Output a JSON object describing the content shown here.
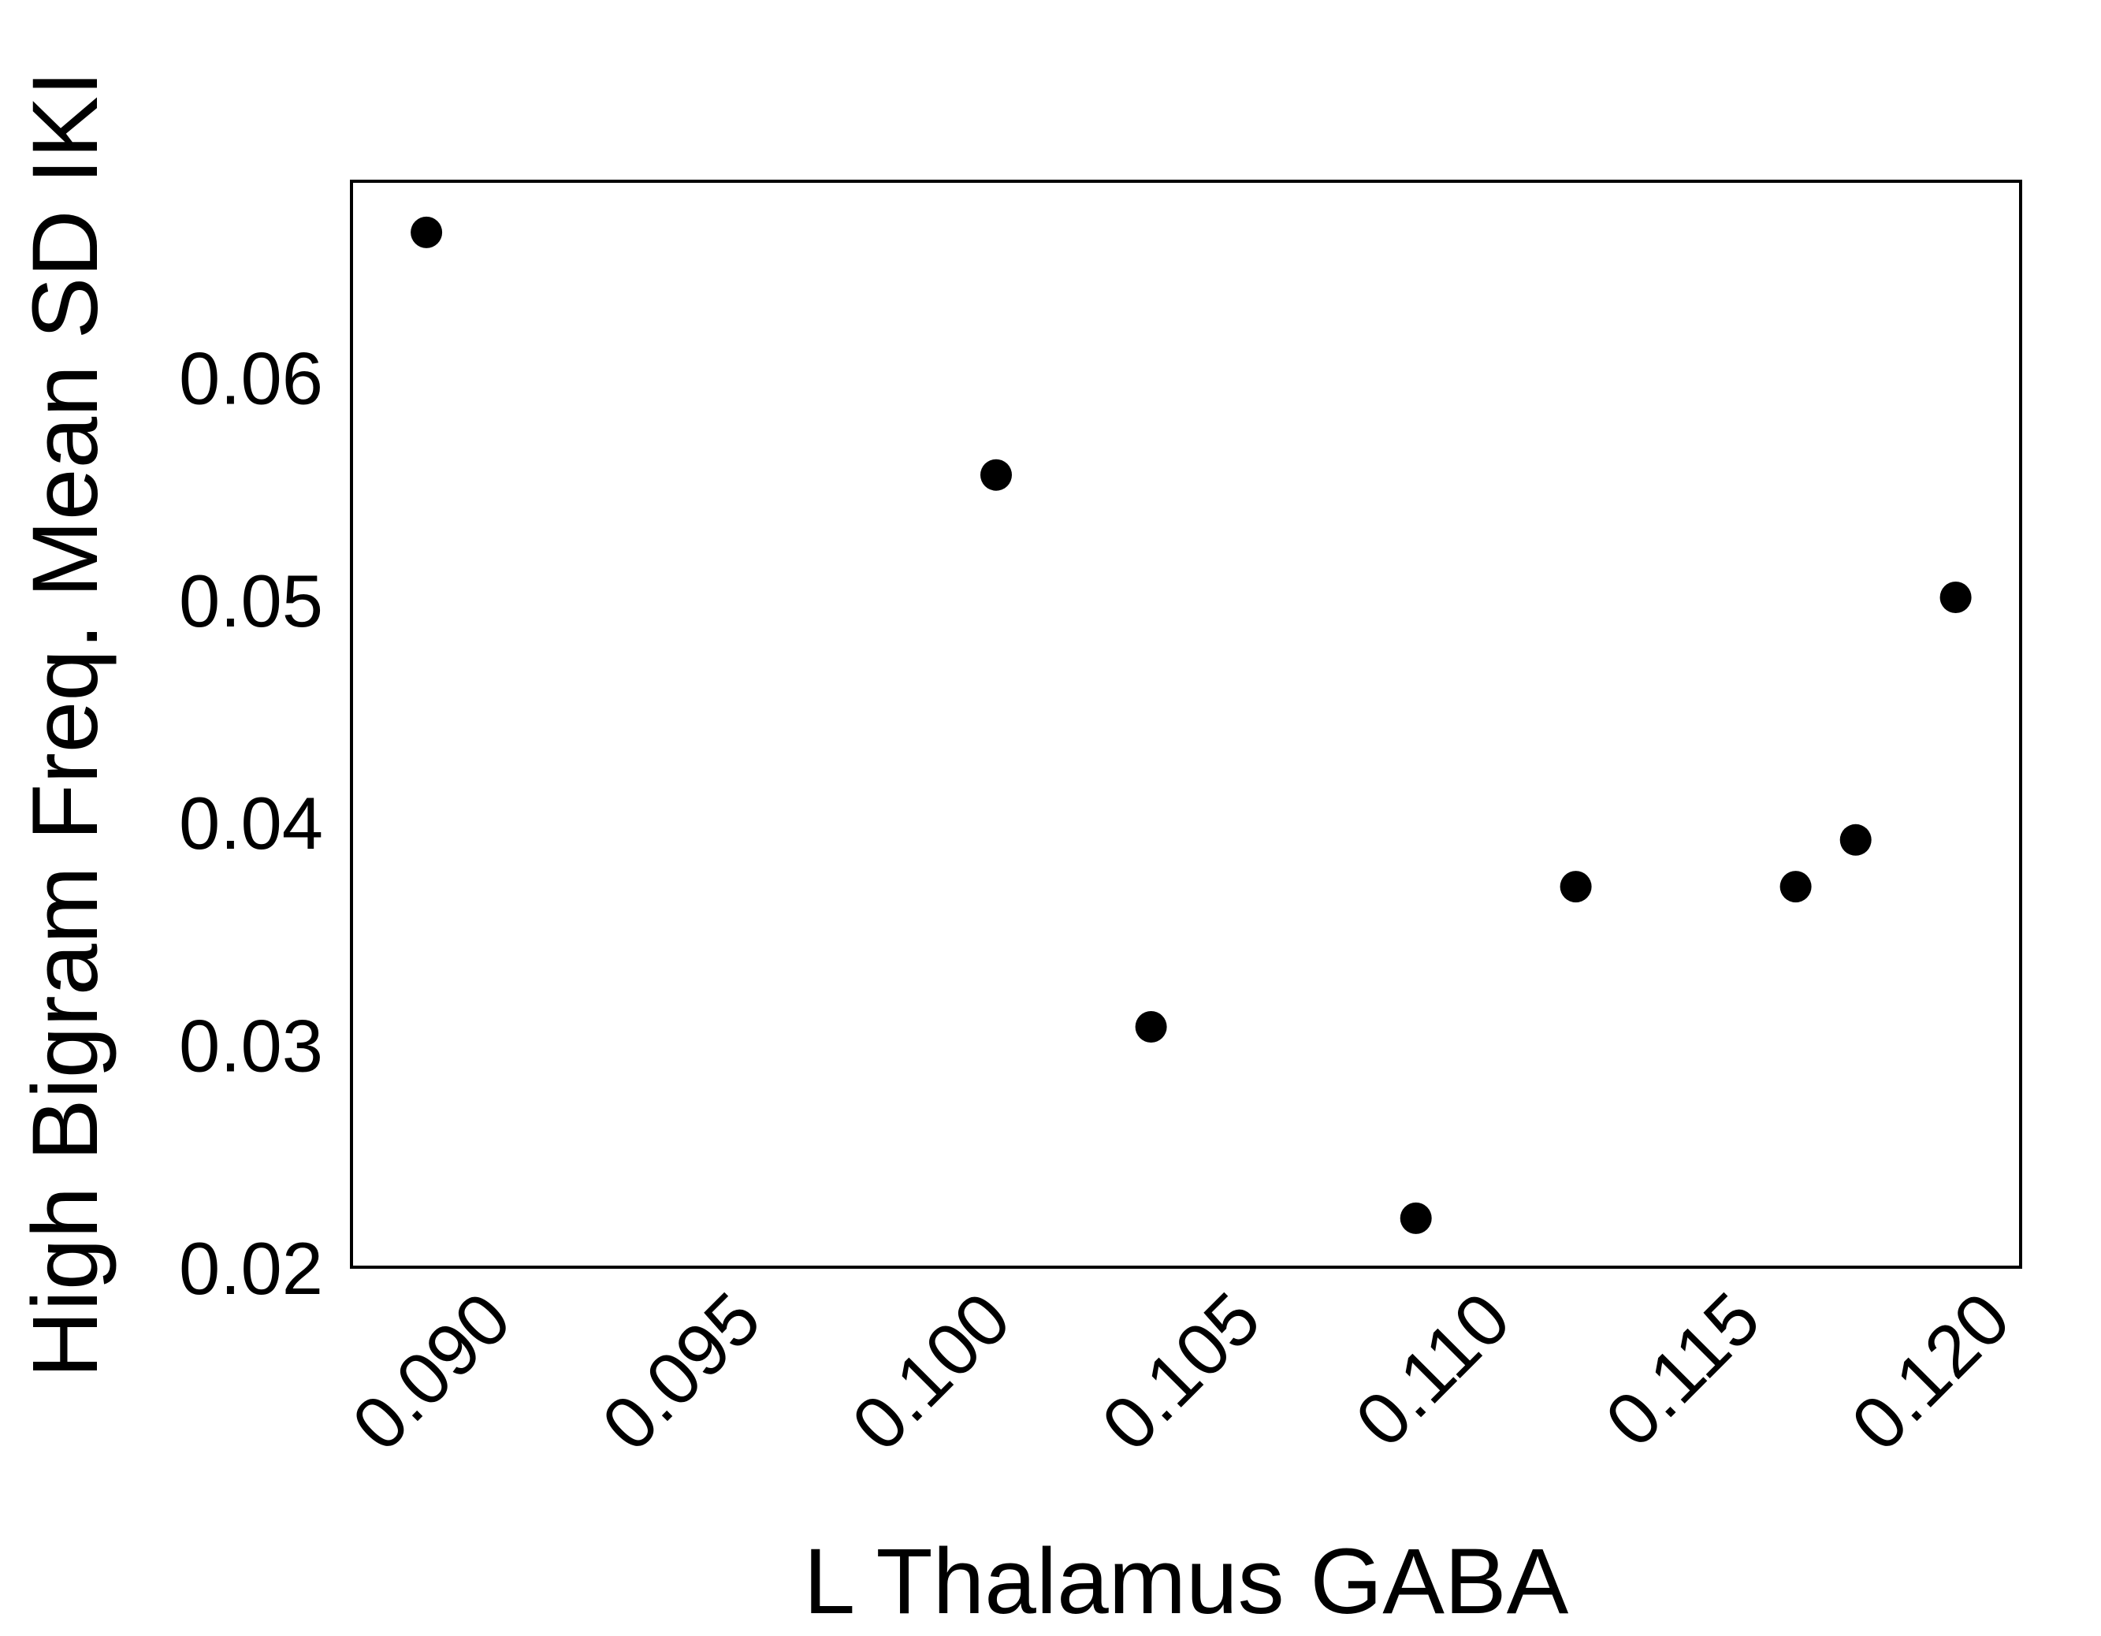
{
  "chart_data": {
    "type": "scatter",
    "title": "",
    "xlabel": "L Thalamus GABA",
    "ylabel": "High Bigram Freq. Mean SD IKI",
    "xlim": [
      0.0867,
      0.1201
    ],
    "ylim": [
      0.02,
      0.0688
    ],
    "xticks": [
      0.09,
      0.095,
      0.1,
      0.105,
      0.11,
      0.115,
      0.12
    ],
    "xtick_labels": [
      "0.090",
      "0.095",
      "0.100",
      "0.105",
      "0.110",
      "0.115",
      "0.120"
    ],
    "yticks": [
      0.02,
      0.03,
      0.04,
      0.05,
      0.06
    ],
    "ytick_labels": [
      "0.02",
      "0.03",
      "0.04",
      "0.05",
      "0.06"
    ],
    "grid": false,
    "legend": "none",
    "marker_color": "#000000",
    "points": [
      {
        "x": 0.0882,
        "y": 0.0665
      },
      {
        "x": 0.0996,
        "y": 0.0556
      },
      {
        "x": 0.1027,
        "y": 0.0308
      },
      {
        "x": 0.108,
        "y": 0.0222
      },
      {
        "x": 0.1112,
        "y": 0.0371
      },
      {
        "x": 0.1156,
        "y": 0.0371
      },
      {
        "x": 0.1168,
        "y": 0.0392
      },
      {
        "x": 0.1188,
        "y": 0.0501
      }
    ]
  }
}
